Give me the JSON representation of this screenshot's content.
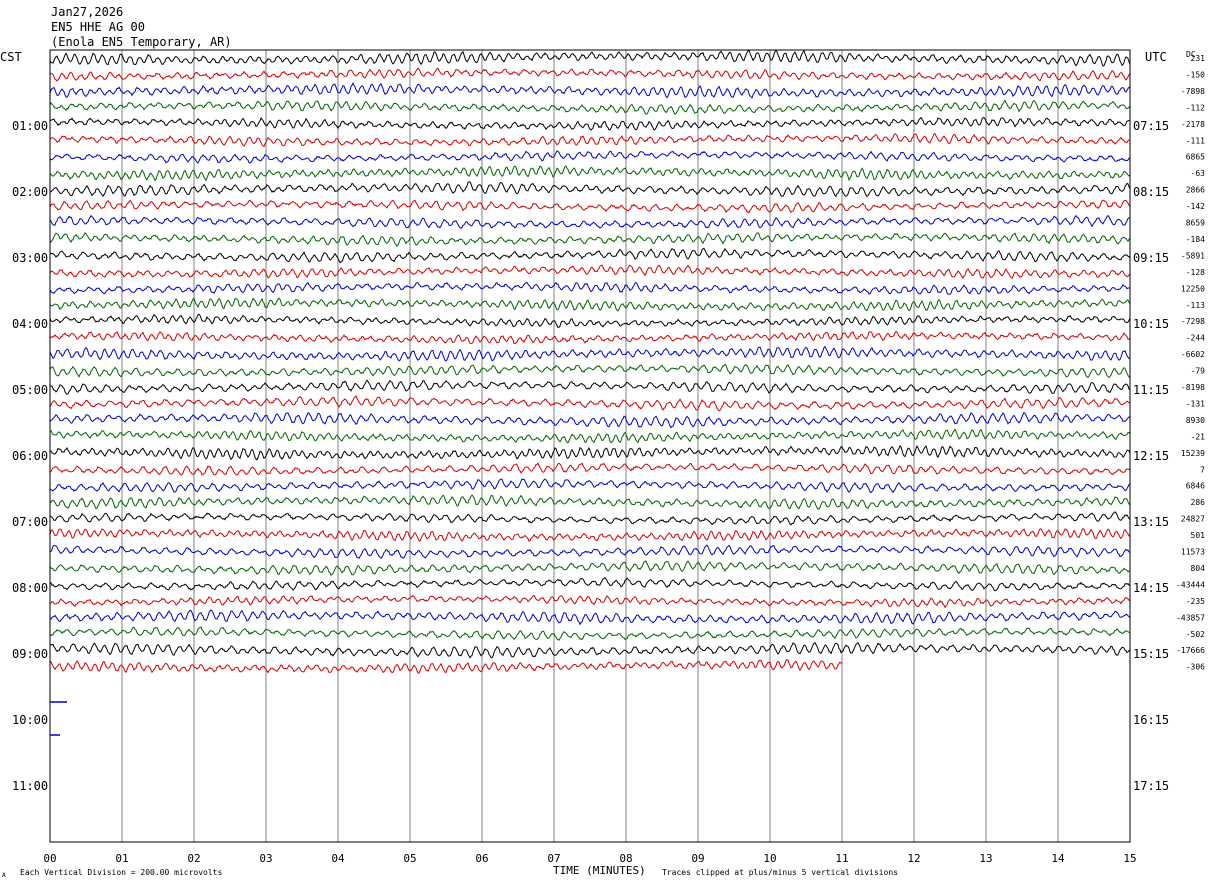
{
  "header": {
    "date": "Jan27,2026",
    "channel": "EN5 HHE AG 00",
    "station": "(Enola EN5 Temporary, AR)"
  },
  "labels": {
    "left_zone": "CST",
    "right_zone": "UTC",
    "dc": "DC",
    "xlabel": "TIME (MINUTES)",
    "footer_scale": "Each Vertical Division =  200.00 microvolts",
    "footer_clip": "Traces clipped at plus/minus 5 vertical divisions",
    "corner_mark": "A"
  },
  "colors": {
    "trace_cycle": [
      "#000000",
      "#d40000",
      "#0000c8",
      "#006400"
    ],
    "grid": "#808080",
    "frame": "#000000"
  },
  "chart_data": {
    "type": "line",
    "plot_kind": "helicorder",
    "x_ticks": [
      "00",
      "01",
      "02",
      "03",
      "04",
      "05",
      "06",
      "07",
      "08",
      "09",
      "10",
      "11",
      "12",
      "13",
      "14",
      "15"
    ],
    "xlim": [
      0,
      15
    ],
    "minutes_per_line": 15,
    "left_hour_labels": [
      "01:00",
      "02:00",
      "03:00",
      "04:00",
      "05:00",
      "06:00",
      "07:00",
      "08:00",
      "09:00",
      "10:00",
      "11:00"
    ],
    "right_hour_labels": [
      "07:15",
      "08:15",
      "09:15",
      "10:15",
      "11:15",
      "12:15",
      "13:15",
      "14:15",
      "15:15",
      "16:15",
      "17:15"
    ],
    "dc_offsets": [
      "231",
      "-150",
      "-7898",
      "-112",
      "-2178",
      "-111",
      "6865",
      "-63",
      "2866",
      "-142",
      "8659",
      "-184",
      "-5891",
      "-128",
      "12250",
      "-113",
      "-7298",
      "-244",
      "-6602",
      "-79",
      "-8198",
      "-131",
      "8930",
      "-21",
      "15239",
      "7",
      "6846",
      "286",
      "24827",
      "501",
      "11573",
      "804",
      "-43444",
      "-235",
      "-43857",
      "-502",
      "-17666",
      "-306"
    ],
    "last_trace_end_minute": 11.0,
    "grid": true
  }
}
